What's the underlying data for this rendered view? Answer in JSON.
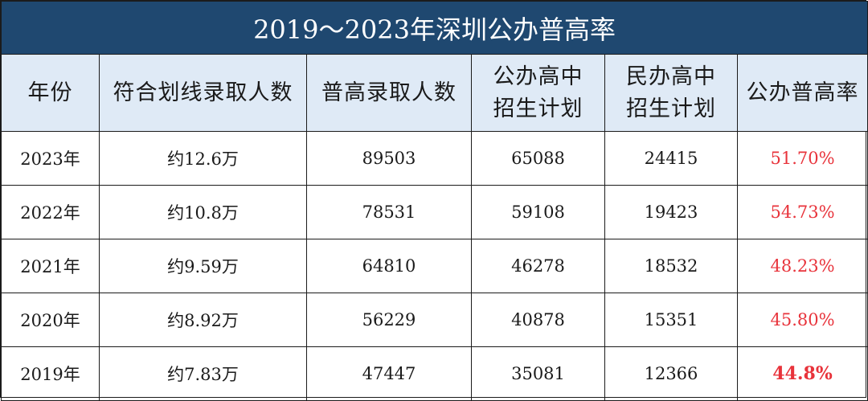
{
  "title": "2019～2023年深圳公办普高率",
  "headers": {
    "year": "年份",
    "qualified": "符合划线录取人数",
    "admitted": "普高录取人数",
    "public_plan_l1": "公办高中",
    "public_plan_l2": "招生计划",
    "private_plan_l1": "民办高中",
    "private_plan_l2": "招生计划",
    "rate": "公办普高率"
  },
  "rows": [
    {
      "year": "2023年",
      "qualified": "约12.6万",
      "admitted": "89503",
      "public_plan": "65088",
      "private_plan": "24415",
      "rate": "51.70%"
    },
    {
      "year": "2022年",
      "qualified": "约10.8万",
      "admitted": "78531",
      "public_plan": "59108",
      "private_plan": "19423",
      "rate": "54.73%"
    },
    {
      "year": "2021年",
      "qualified": "约9.59万",
      "admitted": "64810",
      "public_plan": "46278",
      "private_plan": "18532",
      "rate": "48.23%"
    },
    {
      "year": "2020年",
      "qualified": "约8.92万",
      "admitted": "56229",
      "public_plan": "40878",
      "private_plan": "15351",
      "rate": "45.80%"
    },
    {
      "year": "2019年",
      "qualified": "约7.83万",
      "admitted": "47447",
      "public_plan": "35081",
      "private_plan": "12366",
      "rate": "44.8%"
    }
  ],
  "colors": {
    "title_bg": "#1f4870",
    "header_bg": "#dfeaf6",
    "rate_text": "#e8333b"
  }
}
